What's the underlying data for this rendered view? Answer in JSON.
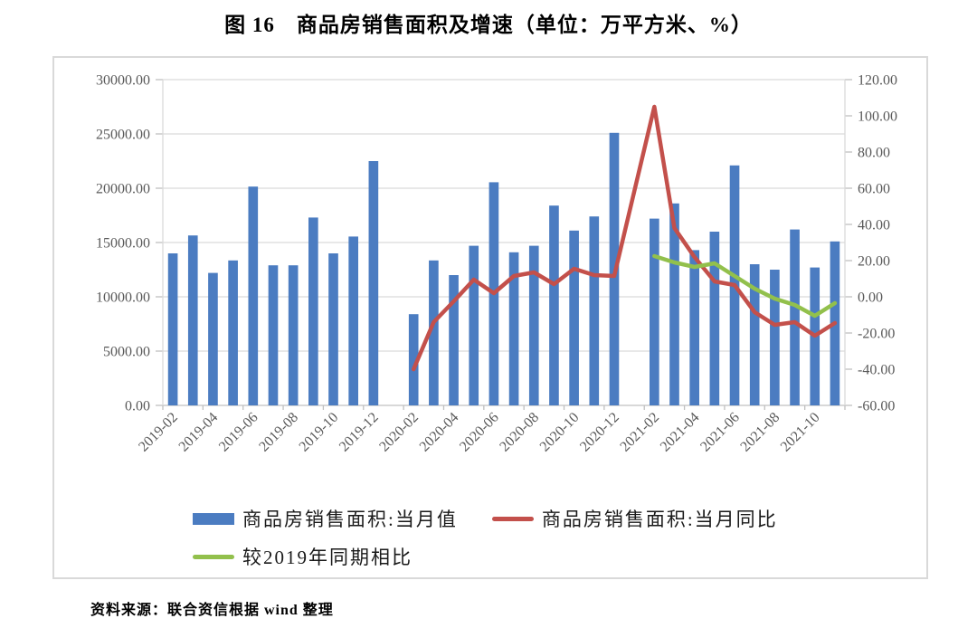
{
  "page": {
    "title": "图 16　商品房销售面积及增速（单位：万平方米、%）",
    "source": "资料来源：联合资信根据 wind 整理"
  },
  "colors": {
    "bar_blue": "#4b7cc1",
    "line_red": "#c3504b",
    "line_green": "#92c04c",
    "gridline": "#dadada",
    "axis_line": "#c0c0c0",
    "axis_text": "#595959"
  },
  "chart_data": {
    "type": "bar",
    "subtype": "combo-bar-line",
    "title": "图 16　商品房销售面积及增速（单位：万平方米、%）",
    "grid": true,
    "legend_position": "bottom",
    "categories": [
      "2019-02",
      "2019-03",
      "2019-04",
      "2019-05",
      "2019-06",
      "2019-07",
      "2019-08",
      "2019-09",
      "2019-10",
      "2019-11",
      "2019-12",
      "2020-01",
      "2020-02",
      "2020-03",
      "2020-04",
      "2020-05",
      "2020-06",
      "2020-07",
      "2020-08",
      "2020-09",
      "2020-10",
      "2020-11",
      "2020-12",
      "2021-01",
      "2021-02",
      "2021-03",
      "2021-04",
      "2021-05",
      "2021-06",
      "2021-07",
      "2021-08",
      "2021-09",
      "2021-10",
      "2021-11"
    ],
    "x_tick_labels": [
      "2019-02",
      "2019-04",
      "2019-06",
      "2019-08",
      "2019-10",
      "2019-12",
      "2020-02",
      "2020-04",
      "2020-06",
      "2020-08",
      "2020-10",
      "2020-12",
      "2021-02",
      "2021-04",
      "2021-06",
      "2021-08",
      "2021-10"
    ],
    "left_axis": {
      "min": 0,
      "max": 30000,
      "tick_values": [
        0,
        5000,
        10000,
        15000,
        20000,
        25000,
        30000
      ],
      "tick_labels": [
        "0.00",
        "5000.00",
        "10000.00",
        "15000.00",
        "20000.00",
        "25000.00",
        "30000.00"
      ]
    },
    "right_axis": {
      "min": -60,
      "max": 120,
      "tick_values": [
        -60,
        -40,
        -20,
        0,
        20,
        40,
        60,
        80,
        100,
        120
      ],
      "tick_labels": [
        "-60.00",
        "-40.00",
        "-20.00",
        "0.00",
        "20.00",
        "40.00",
        "60.00",
        "80.00",
        "100.00",
        "120.00"
      ]
    },
    "series": [
      {
        "name": "商品房销售面积:当月值",
        "type": "bar",
        "axis": "left",
        "color": "#4b7cc1",
        "values": [
          14000,
          15650,
          12200,
          13350,
          20150,
          12900,
          12900,
          17300,
          14000,
          15550,
          22500,
          null,
          8400,
          13350,
          12000,
          14700,
          20550,
          14100,
          14700,
          18400,
          16100,
          17400,
          25100,
          null,
          17200,
          18600,
          14300,
          16000,
          22100,
          13000,
          12500,
          16200,
          12700,
          15100
        ]
      },
      {
        "name": "商品房销售面积:当月同比",
        "type": "line",
        "axis": "right",
        "color": "#c3504b",
        "values": [
          null,
          null,
          null,
          null,
          null,
          null,
          null,
          null,
          null,
          null,
          null,
          null,
          -40,
          -14,
          -2.5,
          9.5,
          2,
          11.5,
          13.5,
          7,
          15.5,
          12,
          11.5,
          null,
          105,
          38,
          22,
          8.5,
          6.5,
          -8.5,
          -15.5,
          -14,
          -21.5,
          -14.5
        ]
      },
      {
        "name": "较2019年同期相比",
        "type": "line",
        "axis": "right",
        "color": "#92c04c",
        "values": [
          null,
          null,
          null,
          null,
          null,
          null,
          null,
          null,
          null,
          null,
          null,
          null,
          null,
          null,
          null,
          null,
          null,
          null,
          null,
          null,
          null,
          null,
          null,
          null,
          22.5,
          19,
          16.5,
          18.5,
          11.5,
          4.5,
          -1,
          -4.5,
          -10.5,
          -3.5
        ]
      }
    ]
  }
}
